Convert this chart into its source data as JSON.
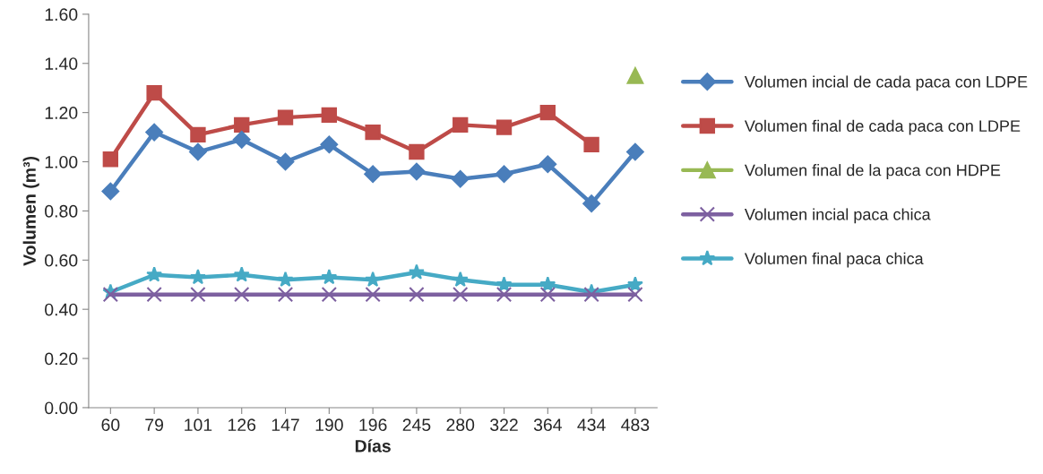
{
  "chart_data": {
    "type": "line",
    "xlabel": "Días",
    "ylabel": "Volumen (m³)",
    "categories": [
      "60",
      "79",
      "101",
      "126",
      "147",
      "190",
      "196",
      "245",
      "280",
      "322",
      "364",
      "434",
      "483"
    ],
    "series": [
      {
        "name": "Volumen incial de cada paca con LDPE",
        "color": "#4a7ebb",
        "marker": "diamond",
        "values": [
          0.88,
          1.12,
          1.04,
          1.09,
          1.0,
          1.07,
          0.95,
          0.96,
          0.93,
          0.95,
          0.99,
          0.83,
          1.04
        ]
      },
      {
        "name": "Volumen final de cada paca con LDPE",
        "color": "#be4b48",
        "marker": "square",
        "values": [
          1.01,
          1.28,
          1.11,
          1.15,
          1.18,
          1.19,
          1.12,
          1.04,
          1.15,
          1.14,
          1.2,
          1.07,
          null
        ]
      },
      {
        "name": "Volumen final de la paca con HDPE",
        "color": "#98b954",
        "marker": "triangle",
        "values": [
          null,
          null,
          null,
          null,
          null,
          null,
          null,
          null,
          null,
          null,
          null,
          null,
          1.35
        ]
      },
      {
        "name": "Volumen incial paca chica",
        "color": "#7d60a0",
        "marker": "cross",
        "values": [
          0.46,
          0.46,
          0.46,
          0.46,
          0.46,
          0.46,
          0.46,
          0.46,
          0.46,
          0.46,
          0.46,
          0.46,
          0.46
        ]
      },
      {
        "name": "Volumen final paca chica",
        "color": "#46aac5",
        "marker": "star",
        "values": [
          0.47,
          0.54,
          0.53,
          0.54,
          0.52,
          0.53,
          0.52,
          0.55,
          0.52,
          0.5,
          0.5,
          0.47,
          0.5
        ]
      }
    ],
    "ylim": [
      0,
      1.6
    ],
    "yticks": [
      {
        "value": 0,
        "label": "0.00"
      },
      {
        "value": 0.2,
        "label": "0.20"
      },
      {
        "value": 0.4,
        "label": "0.40"
      },
      {
        "value": 0.6,
        "label": "0.60"
      },
      {
        "value": 0.8,
        "label": "0.80"
      },
      {
        "value": 1.0,
        "label": "1.00"
      },
      {
        "value": 1.2,
        "label": "1.20"
      },
      {
        "value": 1.4,
        "label": "1.40"
      },
      {
        "value": 1.6,
        "label": "1.60"
      }
    ],
    "grid": false,
    "legend": "right"
  }
}
